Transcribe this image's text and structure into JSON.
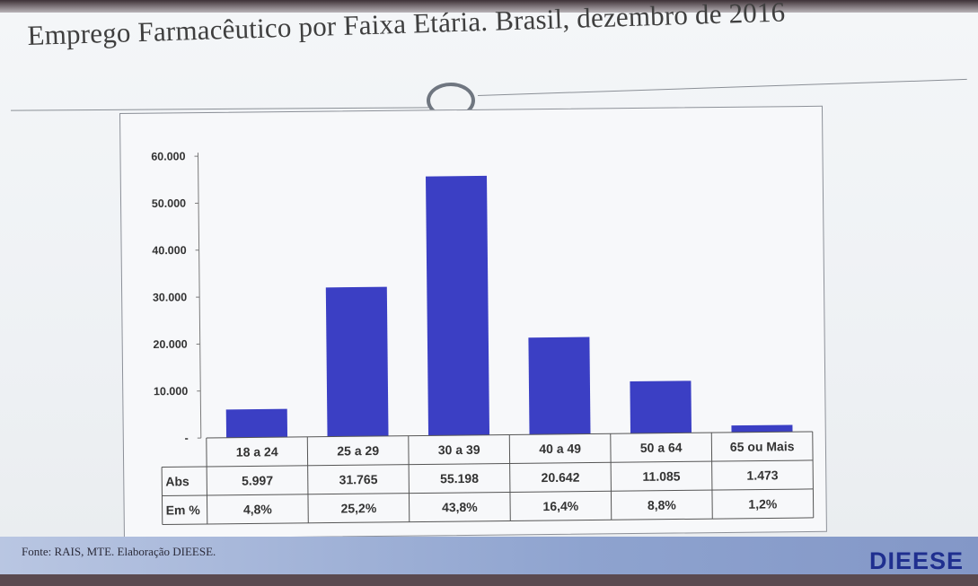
{
  "slide": {
    "title": "Emprego Farmacêutico por Faixa Etária. Brasil, dezembro de 2016",
    "source": "Fonte: RAIS, MTE. Elaboração DIEESE.",
    "logo": "DIEESE",
    "bar_color": "#3b3fc4",
    "footer_color": "#8ea3cf"
  },
  "chart_data": {
    "type": "bar",
    "title": "",
    "categories": [
      "18 a 24",
      "25 a 29",
      "30 a 39",
      "40 a 49",
      "50 a 64",
      "65 ou Mais"
    ],
    "values": [
      5997,
      31765,
      55198,
      20642,
      11085,
      1473
    ],
    "ylim": [
      0,
      60000
    ],
    "yticks": [
      0,
      10000,
      20000,
      30000,
      40000,
      50000,
      60000
    ],
    "ytick_labels": [
      "-",
      "10.000",
      "20.000",
      "30.000",
      "40.000",
      "50.000",
      "60.000"
    ],
    "grid": false,
    "legend": "none",
    "table": {
      "rows": [
        {
          "label": "Abs",
          "values": [
            "5.997",
            "31.765",
            "55.198",
            "20.642",
            "11.085",
            "1.473"
          ]
        },
        {
          "label": "Em %",
          "values": [
            "4,8%",
            "25,2%",
            "43,8%",
            "16,4%",
            "8,8%",
            "1,2%"
          ]
        }
      ]
    }
  }
}
